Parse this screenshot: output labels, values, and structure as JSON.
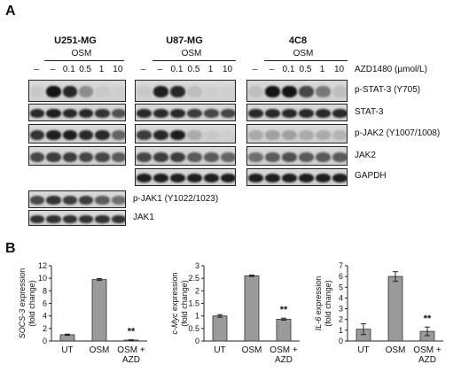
{
  "panel_a": {
    "letter": "A",
    "cells": [
      "U251-MG",
      "U87-MG",
      "4C8"
    ],
    "osm_label": "OSM",
    "lanes": [
      "–",
      "–",
      "0.1",
      "0.5",
      "1",
      "10"
    ],
    "drug_label": "AZD1480 (µmol/L)",
    "row_labels": [
      "p-STAT-3 (Y705)",
      "STAT-3",
      "p-JAK2 (Y1007/1008)",
      "JAK2",
      "GAPDH"
    ],
    "jak1_labels": [
      "p-JAK1 (Y1022/1023)",
      "JAK1"
    ]
  },
  "panel_b": {
    "letter": "B",
    "categories": [
      "UT",
      "OSM",
      "OSM +\nAZD"
    ],
    "significance": "**"
  },
  "chart_data": [
    {
      "type": "bar",
      "ylabel": "SOCS-3 expression (fold change)",
      "ylabel_italic": "SOCS-3",
      "ylabel_rest": " expression",
      "ylabel_line2": "(fold change)",
      "categories": [
        "UT",
        "OSM",
        "OSM + AZD"
      ],
      "values": [
        1.0,
        9.8,
        0.15
      ],
      "errors": [
        0.1,
        0.15,
        0.05
      ],
      "ylim": [
        0,
        12
      ],
      "yticks": [
        0,
        2,
        4,
        6,
        8,
        10,
        12
      ],
      "annotation": {
        "category": "OSM + AZD",
        "text": "**"
      }
    },
    {
      "type": "bar",
      "ylabel": "c-Myc expression (fold change)",
      "ylabel_italic": "c-Myc",
      "ylabel_rest": " expression",
      "ylabel_line2": "(fold change)",
      "categories": [
        "UT",
        "OSM",
        "OSM + AZD"
      ],
      "values": [
        1.0,
        2.6,
        0.87
      ],
      "errors": [
        0.05,
        0.03,
        0.04
      ],
      "ylim": [
        0,
        3
      ],
      "yticks": [
        0,
        0.5,
        1,
        1.5,
        2,
        2.5,
        3
      ],
      "annotation": {
        "category": "OSM + AZD",
        "text": "**"
      }
    },
    {
      "type": "bar",
      "ylabel": "IL-6 expression (fold change)",
      "ylabel_italic": "IL-6",
      "ylabel_rest": " expression",
      "ylabel_line2": "(fold change)",
      "categories": [
        "UT",
        "OSM",
        "OSM + AZD"
      ],
      "values": [
        1.1,
        6.0,
        0.9
      ],
      "errors": [
        0.5,
        0.45,
        0.4
      ],
      "ylim": [
        0,
        7
      ],
      "yticks": [
        0,
        1,
        2,
        3,
        4,
        5,
        6,
        7
      ],
      "annotation": {
        "category": "OSM + AZD",
        "text": "**"
      }
    }
  ]
}
